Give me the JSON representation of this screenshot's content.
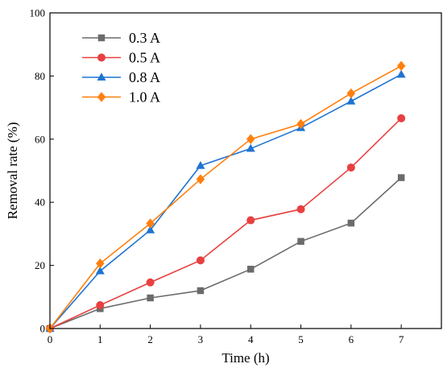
{
  "chart_data": {
    "type": "line",
    "xlabel": "Time (h)",
    "ylabel": "Removal rate (%)",
    "xlim": [
      0,
      7.8
    ],
    "ylim": [
      0,
      100
    ],
    "xticks": [
      0,
      1,
      2,
      3,
      4,
      5,
      6,
      7
    ],
    "yticks": [
      0,
      20,
      40,
      60,
      80,
      100
    ],
    "x": [
      0,
      1,
      2,
      3,
      4,
      5,
      6,
      7
    ],
    "legend_position": "top-left",
    "series": [
      {
        "name": "0.3 A",
        "color": "#6b6b6b",
        "marker": "square",
        "values": [
          0,
          6.3,
          9.7,
          12.0,
          18.8,
          27.6,
          33.4,
          47.8
        ]
      },
      {
        "name": "0.5 A",
        "color": "#e84040",
        "marker": "circle",
        "values": [
          0,
          7.4,
          14.6,
          21.6,
          34.3,
          37.8,
          51.0,
          66.6
        ]
      },
      {
        "name": "0.8 A",
        "color": "#1f74d2",
        "marker": "triangle",
        "values": [
          0,
          18.2,
          31.2,
          51.6,
          57.0,
          63.6,
          72.0,
          80.5
        ]
      },
      {
        "name": "1.0 A",
        "color": "#ff7f0e",
        "marker": "diamond",
        "values": [
          0,
          20.6,
          33.3,
          47.3,
          60.0,
          64.8,
          74.5,
          83.2
        ]
      }
    ]
  }
}
